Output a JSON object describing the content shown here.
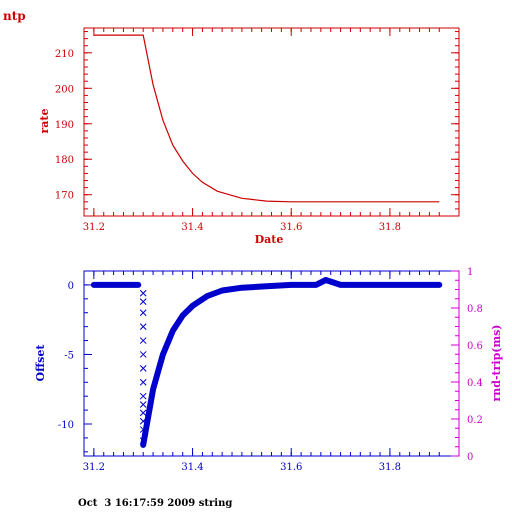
{
  "chart_data": [
    {
      "type": "line",
      "title": "ntp",
      "xlabel": "Date",
      "ylabel": "rate",
      "xlim": [
        31.18,
        31.94
      ],
      "ylim": [
        164,
        217
      ],
      "xticks": [
        "31.2",
        "31.4",
        "31.6",
        "31.8"
      ],
      "yticks": [
        "170",
        "180",
        "190",
        "200",
        "210"
      ],
      "grid": false,
      "series": [
        {
          "x": [
            31.2,
            31.3,
            31.32,
            31.34,
            31.36,
            31.38,
            31.4,
            31.42,
            31.45,
            31.5,
            31.55,
            31.6,
            31.7,
            31.8,
            31.9
          ],
          "y": [
            215,
            215,
            201,
            191,
            184,
            179.5,
            176,
            173.5,
            171,
            169,
            168.2,
            168,
            168,
            168,
            168
          ]
        }
      ]
    },
    {
      "type": "scatter",
      "xlabel": "",
      "ylabel": "Offset",
      "ylabel_right": "rnd-trip(ms)",
      "xlim": [
        31.18,
        31.94
      ],
      "ylim": [
        -12.3,
        1
      ],
      "ylim_right": [
        0,
        1
      ],
      "xticks": [
        "31.2",
        "31.4",
        "31.6",
        "31.8"
      ],
      "yticks": [
        "0",
        "-5",
        "-10"
      ],
      "yticks_right": [
        "0",
        "0.2",
        "0.4",
        "0.6",
        "0.8",
        "1"
      ],
      "grid": false,
      "series": [
        {
          "marker": "x",
          "x": [
            31.2,
            31.25,
            31.29,
            31.3,
            31.3,
            31.3,
            31.3,
            31.3,
            31.3,
            31.3,
            31.3,
            31.3,
            31.3,
            31.3,
            31.3,
            31.3,
            31.3
          ],
          "y": [
            0,
            0,
            0,
            -0.6,
            -1.2,
            -2.0,
            -3.0,
            -4.0,
            -5.0,
            -6.0,
            -7.0,
            -8.0,
            -8.6,
            -9.2,
            -9.8,
            -10.4,
            -11.2
          ]
        },
        {
          "marker": "x",
          "x": [
            31.3,
            31.32,
            31.34,
            31.36,
            31.38,
            31.4,
            31.43,
            31.46,
            31.5,
            31.55,
            31.6,
            31.65,
            31.67,
            31.7,
            31.8,
            31.9
          ],
          "y": [
            -11.5,
            -7.5,
            -5.0,
            -3.3,
            -2.2,
            -1.5,
            -0.8,
            -0.4,
            -0.2,
            -0.1,
            0,
            0,
            0.35,
            0,
            0,
            0
          ]
        }
      ]
    }
  ],
  "footer": "Oct  3 16:17:59 2009 string",
  "colors": {
    "top_axes": "#cc0000",
    "bottom_axes": "#0000cc",
    "right_axis": "#cc00cc"
  }
}
